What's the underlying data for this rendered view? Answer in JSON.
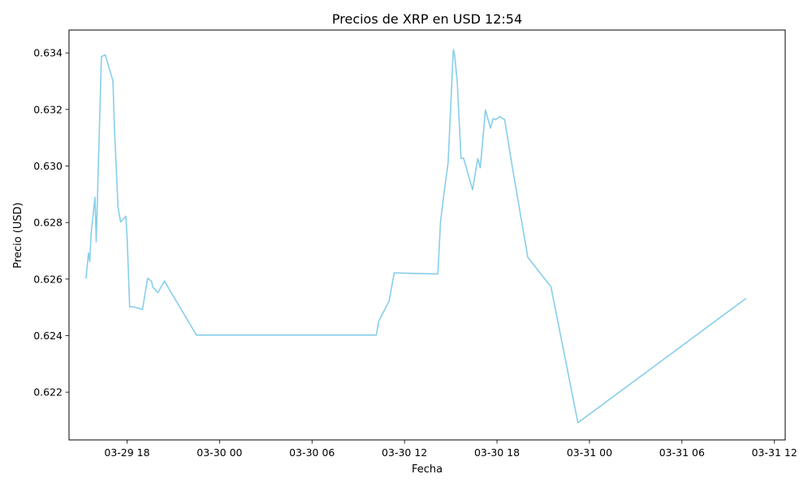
{
  "chart_data": {
    "type": "line",
    "title": "Precios de XRP en USD 12:54",
    "xlabel": "Fecha",
    "ylabel": "Precio (USD)",
    "x_ticks": [
      "03-29 18",
      "03-30 00",
      "03-30 06",
      "03-30 12",
      "03-30 18",
      "03-31 00",
      "03-31 06",
      "03-31 12"
    ],
    "y_ticks": [
      "0.622",
      "0.624",
      "0.626",
      "0.628",
      "0.630",
      "0.632",
      "0.634"
    ],
    "xlim": [
      "2024-03-29 14:14",
      "2024-03-31 12:42"
    ],
    "ylim": [
      0.62031,
      0.63481
    ],
    "grid": false,
    "legend": false,
    "color": "#87ceeb",
    "series": [
      {
        "x": [
          "2024-03-29 15:20",
          "2024-03-29 15:30",
          "2024-03-29 15:35",
          "2024-03-29 15:40",
          "2024-03-29 15:55",
          "2024-03-29 16:00",
          "2024-03-29 16:20",
          "2024-03-29 16:35",
          "2024-03-29 17:05",
          "2024-03-29 17:10",
          "2024-03-29 17:25",
          "2024-03-29 17:35",
          "2024-03-29 17:55",
          "2024-03-29 18:00",
          "2024-03-29 18:10",
          "2024-03-29 18:25",
          "2024-03-29 19:00",
          "2024-03-29 19:20",
          "2024-03-29 19:35",
          "2024-03-29 19:40",
          "2024-03-29 19:50",
          "2024-03-29 20:00",
          "2024-03-29 20:25",
          "2024-03-29 22:30",
          "2024-03-30 10:10",
          "2024-03-30 10:20",
          "2024-03-30 11:00",
          "2024-03-30 11:20",
          "2024-03-30 14:10",
          "2024-03-30 14:15",
          "2024-03-30 14:20",
          "2024-03-30 14:35",
          "2024-03-30 14:50",
          "2024-03-30 15:10",
          "2024-03-30 15:15",
          "2024-03-30 15:25",
          "2024-03-30 15:40",
          "2024-03-30 15:50",
          "2024-03-30 16:25",
          "2024-03-30 16:45",
          "2024-03-30 16:55",
          "2024-03-30 17:15",
          "2024-03-30 17:35",
          "2024-03-30 17:45",
          "2024-03-30 17:55",
          "2024-03-30 18:10",
          "2024-03-30 18:30",
          "2024-03-30 19:00",
          "2024-03-30 20:00",
          "2024-03-30 21:30",
          "2024-03-30 23:15",
          "2024-03-31 10:10"
        ],
        "y": [
          0.62602,
          0.62692,
          0.62662,
          0.62762,
          0.62889,
          0.62732,
          0.63387,
          0.63393,
          0.63301,
          0.63152,
          0.62852,
          0.62802,
          0.62822,
          0.62752,
          0.62502,
          0.62502,
          0.62492,
          0.62603,
          0.62592,
          0.62572,
          0.62562,
          0.62552,
          0.62593,
          0.62402,
          0.62402,
          0.62452,
          0.62522,
          0.62622,
          0.62618,
          0.62712,
          0.62802,
          0.62912,
          0.63012,
          0.63412,
          0.63392,
          0.63302,
          0.63027,
          0.63028,
          0.62916,
          0.63026,
          0.62994,
          0.63198,
          0.63134,
          0.63168,
          0.63164,
          0.63175,
          0.63164,
          0.62995,
          0.62677,
          0.62573,
          0.62092,
          0.62532
        ]
      }
    ]
  }
}
